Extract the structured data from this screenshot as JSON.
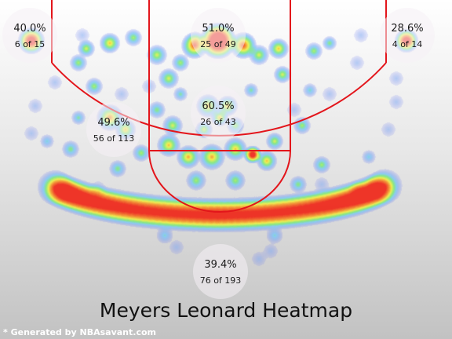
{
  "chart_data": {
    "type": "heatmap",
    "title": "Meyers Leonard Heatmap",
    "credit": "* Generated by NBAsavant.com",
    "colors": {
      "court_lines": "#e3151b",
      "cold": "#6a6af0",
      "mid": "#7fe87f",
      "warm": "#f2f23a",
      "hot": "#f41b0c"
    },
    "zones": [
      {
        "name": "left-corner-three",
        "pct": "40.0%",
        "made": "6 of 15"
      },
      {
        "name": "top-of-key",
        "pct": "51.0%",
        "made": "25 of 49"
      },
      {
        "name": "right-corner-three",
        "pct": "28.6%",
        "made": "4 of 14"
      },
      {
        "name": "left-midrange",
        "pct": "49.6%",
        "made": "56 of 113"
      },
      {
        "name": "paint",
        "pct": "60.5%",
        "made": "26 of 43"
      },
      {
        "name": "above-break-three",
        "pct": "39.4%",
        "made": "76 of 193"
      }
    ]
  }
}
